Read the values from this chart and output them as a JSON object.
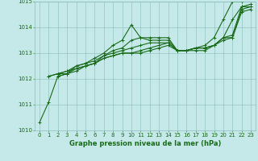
{
  "series": [
    {
      "x": [
        0,
        1,
        2,
        3,
        4,
        5,
        6,
        7,
        8,
        9,
        10,
        11,
        12,
        13,
        14,
        15,
        16,
        17,
        18,
        19,
        20,
        21,
        22
      ],
      "y": [
        1010.3,
        1011.1,
        1012.1,
        1012.2,
        1012.5,
        1012.6,
        1012.8,
        1013.0,
        1013.3,
        1013.5,
        1014.1,
        1013.6,
        1013.6,
        1013.6,
        1013.6,
        1013.1,
        1013.1,
        1013.2,
        1013.3,
        1013.6,
        1014.3,
        1015.0,
        1015.0
      ]
    },
    {
      "x": [
        1,
        2,
        3,
        4,
        5,
        6,
        7,
        8,
        9,
        10,
        11,
        12,
        13,
        14,
        15,
        16,
        17,
        18,
        19,
        20,
        21,
        22,
        23
      ],
      "y": [
        1012.1,
        1012.2,
        1012.3,
        1012.5,
        1012.6,
        1012.7,
        1012.9,
        1013.1,
        1013.2,
        1013.5,
        1013.6,
        1013.5,
        1013.5,
        1013.5,
        1013.1,
        1013.1,
        1013.1,
        1013.1,
        1013.3,
        1013.6,
        1014.3,
        1014.8,
        1014.8
      ]
    },
    {
      "x": [
        1,
        2,
        3,
        4,
        5,
        6,
        7,
        8,
        9,
        10,
        11,
        12,
        13,
        14,
        15,
        16,
        17,
        18,
        19,
        20,
        21,
        22,
        23
      ],
      "y": [
        1012.1,
        1012.2,
        1012.2,
        1012.4,
        1012.5,
        1012.6,
        1012.9,
        1013.0,
        1013.1,
        1013.2,
        1013.3,
        1013.4,
        1013.4,
        1013.4,
        1013.1,
        1013.1,
        1013.2,
        1013.2,
        1013.3,
        1013.6,
        1013.7,
        1014.8,
        1014.9
      ]
    },
    {
      "x": [
        2,
        3,
        4,
        5,
        6,
        7,
        8,
        9,
        10,
        11,
        12,
        13,
        14,
        15,
        16,
        17,
        18,
        19,
        20,
        21,
        22,
        23
      ],
      "y": [
        1012.2,
        1012.3,
        1012.4,
        1012.5,
        1012.6,
        1012.8,
        1012.9,
        1013.0,
        1013.0,
        1013.1,
        1013.2,
        1013.3,
        1013.4,
        1013.1,
        1013.1,
        1013.2,
        1013.2,
        1013.3,
        1013.6,
        1013.6,
        1014.7,
        1014.8
      ]
    },
    {
      "x": [
        2,
        3,
        4,
        5,
        6,
        7,
        8,
        9,
        10,
        11,
        12,
        13,
        14,
        15,
        16,
        17,
        18,
        19,
        20,
        21,
        22,
        23
      ],
      "y": [
        1012.1,
        1012.2,
        1012.3,
        1012.5,
        1012.6,
        1012.8,
        1012.9,
        1013.0,
        1013.0,
        1013.0,
        1013.1,
        1013.2,
        1013.3,
        1013.1,
        1013.1,
        1013.2,
        1013.2,
        1013.3,
        1013.5,
        1013.6,
        1014.6,
        1014.7
      ]
    }
  ],
  "line_color": "#1a6b1a",
  "marker": "+",
  "markersize": 3,
  "linewidth": 0.8,
  "xlabel": "Graphe pression niveau de la mer (hPa)",
  "xlabel_fontsize": 6,
  "xlabel_color": "#1a6b1a",
  "ylim": [
    1010.0,
    1015.0
  ],
  "xlim": [
    -0.5,
    23.5
  ],
  "yticks": [
    1010,
    1011,
    1012,
    1013,
    1014,
    1015
  ],
  "xticks": [
    0,
    1,
    2,
    3,
    4,
    5,
    6,
    7,
    8,
    9,
    10,
    11,
    12,
    13,
    14,
    15,
    16,
    17,
    18,
    19,
    20,
    21,
    22,
    23
  ],
  "tick_fontsize": 5,
  "tick_color": "#1a6b1a",
  "grid_color": "#8bbcbc",
  "bg_color": "#c5e8e8",
  "fig_bg_color": "#c5e8e8"
}
